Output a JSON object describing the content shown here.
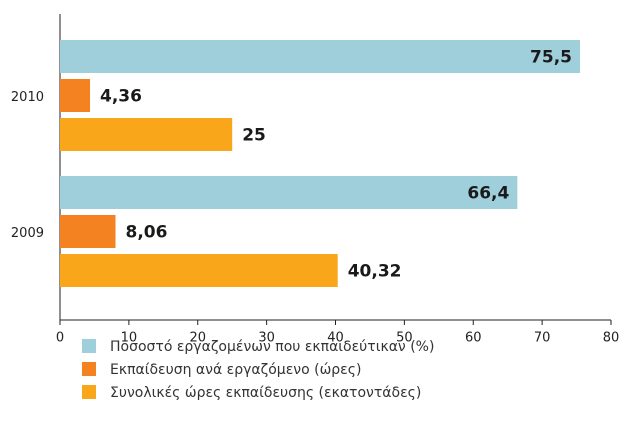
{
  "chart_data": {
    "type": "hbar",
    "categories": [
      "2010",
      "2009"
    ],
    "series": [
      {
        "name": "Ποσοστό εργαζομένων που εκπαιδεύτικαν (%)",
        "color": "#a0cfdc",
        "values": [
          75.5,
          66.4
        ],
        "value_labels": [
          "75,5",
          "66,4"
        ]
      },
      {
        "name": "Εκπαίδευση ανά εργαζόμενο (ώρες)",
        "color": "#f58220",
        "values": [
          4.36,
          8.06
        ],
        "value_labels": [
          "4,36",
          "8,06"
        ]
      },
      {
        "name": "Συνολικές ώρες εκπαίδευσης (εκατοντάδες)",
        "color": "#f9a61a",
        "values": [
          25,
          40.32
        ],
        "value_labels": [
          "25",
          "40,32"
        ]
      }
    ],
    "xlim": [
      0,
      80
    ],
    "xticks": [
      0,
      10,
      20,
      30,
      40,
      50,
      60,
      70,
      80
    ]
  }
}
